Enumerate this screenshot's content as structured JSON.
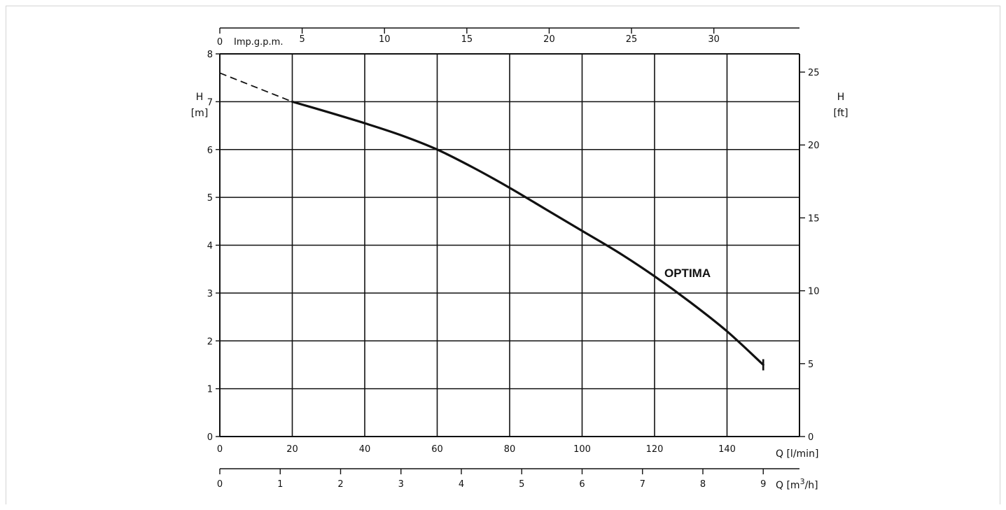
{
  "chart_data": {
    "type": "line",
    "title": "",
    "series": [
      {
        "name": "OPTIMA",
        "x": [
          20,
          30,
          40,
          50,
          60,
          70,
          80,
          90,
          100,
          110,
          120,
          130,
          140,
          150
        ],
        "y": [
          7.0,
          6.78,
          6.55,
          6.3,
          6.0,
          5.62,
          5.2,
          4.75,
          4.3,
          3.85,
          3.35,
          2.8,
          2.2,
          1.5
        ],
        "extrapolated": {
          "x": [
            0,
            20
          ],
          "y": [
            7.6,
            7.0
          ],
          "style": "dashed"
        }
      }
    ],
    "axes": {
      "bottom": {
        "label": "Q [l/min]",
        "range": [
          0,
          160
        ],
        "ticks": [
          0,
          20,
          40,
          60,
          80,
          100,
          120,
          140
        ],
        "tick_labels": [
          "0",
          "20",
          "40",
          "60",
          "80",
          "100",
          "120",
          "140"
        ]
      },
      "bottom2": {
        "label": "Q [m3/h]",
        "range": [
          0,
          9.6
        ],
        "ticks": [
          0,
          1,
          2,
          3,
          4,
          5,
          6,
          7,
          8,
          9
        ],
        "tick_labels": [
          "0",
          "1",
          "2",
          "3",
          "4",
          "5",
          "6",
          "7",
          "8",
          "9"
        ]
      },
      "top": {
        "label": "Imp.g.p.m.",
        "range": [
          0,
          35.2
        ],
        "ticks": [
          0,
          5,
          10,
          15,
          20,
          25,
          30
        ],
        "tick_labels": [
          "0",
          "5",
          "10",
          "15",
          "20",
          "25",
          "30"
        ]
      },
      "left": {
        "label": "H [m]",
        "label_lines": [
          "H",
          "[m]"
        ],
        "range": [
          0,
          8
        ],
        "ticks": [
          0,
          1,
          2,
          3,
          4,
          5,
          6,
          7,
          8
        ],
        "tick_labels": [
          "0",
          "1",
          "2",
          "3",
          "4",
          "5",
          "6",
          "7",
          "8"
        ]
      },
      "right": {
        "label": "H [ft]",
        "label_lines": [
          "H",
          "[ft]"
        ],
        "range": [
          0,
          26.25
        ],
        "ticks": [
          0,
          5,
          10,
          15,
          20,
          25
        ],
        "tick_labels": [
          "0",
          "5",
          "10",
          "15",
          "20",
          "25"
        ]
      }
    },
    "grid": true,
    "legend": "none",
    "colors": {
      "line": "#111111",
      "grid": "#111111",
      "frame_border": "#d4d4d4"
    }
  }
}
